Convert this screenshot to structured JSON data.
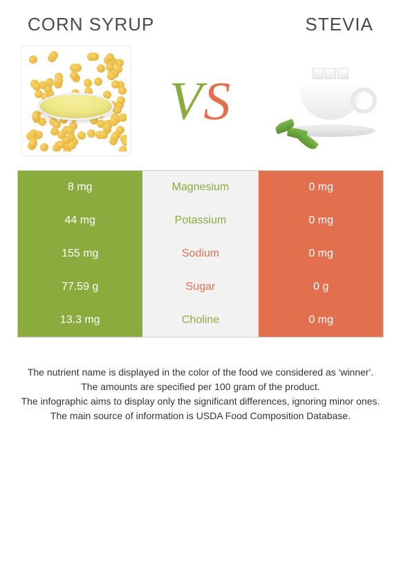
{
  "titles": {
    "left": "CORN SYRUP",
    "right": "STEVIA"
  },
  "vs": {
    "v": "V",
    "s": "S"
  },
  "colors": {
    "green": "#8aab3e",
    "orange": "#e2704e",
    "mid_bg": "#f2f2f2",
    "title_text": "#4a4a4a"
  },
  "rows": [
    {
      "left": "8 mg",
      "mid": "Magnesium",
      "right": "0 mg",
      "left_color": "#8aab3e",
      "mid_color": "#8aab3e",
      "right_color": "#e2704e"
    },
    {
      "left": "44 mg",
      "mid": "Potassium",
      "right": "0 mg",
      "left_color": "#8aab3e",
      "mid_color": "#8aab3e",
      "right_color": "#e2704e"
    },
    {
      "left": "155 mg",
      "mid": "Sodium",
      "right": "0 mg",
      "left_color": "#8aab3e",
      "mid_color": "#e2704e",
      "right_color": "#e2704e"
    },
    {
      "left": "77.59 g",
      "mid": "Sugar",
      "right": "0 g",
      "left_color": "#8aab3e",
      "mid_color": "#e2704e",
      "right_color": "#e2704e"
    },
    {
      "left": "13.3 mg",
      "mid": "Choline",
      "right": "0 mg",
      "left_color": "#8aab3e",
      "mid_color": "#8aab3e",
      "right_color": "#e2704e"
    }
  ],
  "footer": [
    "The nutrient name is displayed in the color of the food we considered as 'winner'.",
    "The amounts are specified per 100 gram of the product.",
    "The infographic aims to display only the significant differences, ignoring minor ones.",
    "The main source of information is USDA Food Composition Database."
  ]
}
